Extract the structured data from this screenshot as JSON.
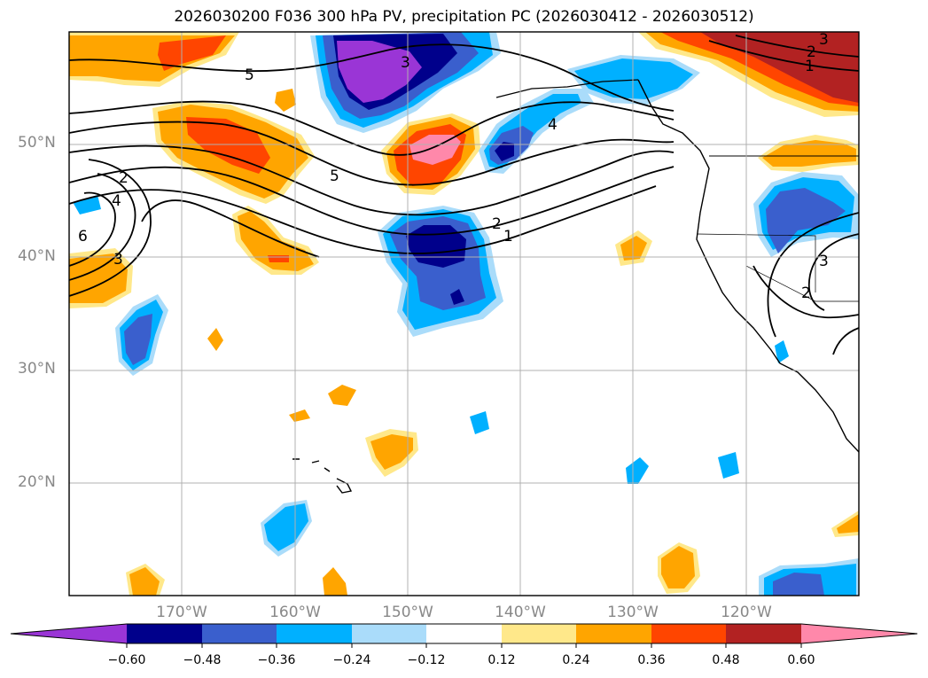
{
  "title": "2026030200 F036 300 hPa PV, precipitation PC (2026030412 - 2026030512)",
  "map": {
    "lat_labels": [
      "50°N",
      "40°N",
      "30°N",
      "20°N"
    ],
    "lon_labels": [
      "170°W",
      "160°W",
      "150°W",
      "140°W",
      "130°W",
      "120°W"
    ],
    "contour_labels": [
      "5",
      "5",
      "4",
      "3",
      "3",
      "2",
      "2",
      "1",
      "1",
      "2",
      "6",
      "4",
      "3",
      "3",
      "2"
    ]
  },
  "colorbar": {
    "ticks": [
      "−0.60",
      "−0.48",
      "−0.36",
      "−0.24",
      "−0.12",
      "0.12",
      "0.24",
      "0.36",
      "0.48",
      "0.60"
    ],
    "colors": [
      "#9a35d6",
      "#00008b",
      "#3a5fcd",
      "#00b0ff",
      "#aadcfa",
      "#ffffff",
      "#ffe88a",
      "#ffa500",
      "#ff4500",
      "#b22222",
      "#ff88aa"
    ]
  },
  "palette": {
    "purple": "#9a35d6",
    "navy": "#00008b",
    "blue": "#3a5fcd",
    "cyan": "#00b0ff",
    "lightblue": "#aadcfa",
    "yellow": "#ffe88a",
    "orange": "#ffa500",
    "red": "#ff4500",
    "darkred": "#b22222",
    "pink": "#ff88aa",
    "grid": "#b0b0b0"
  }
}
